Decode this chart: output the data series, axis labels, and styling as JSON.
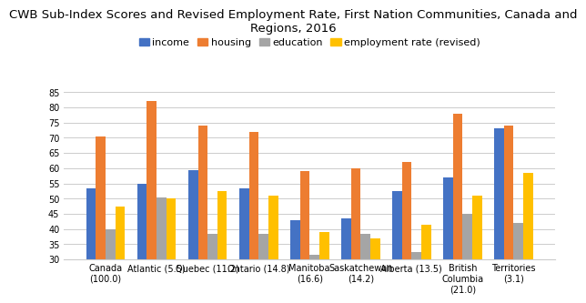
{
  "title": "CWB Sub-Index Scores and Revised Employment Rate, First Nation Communities, Canada and\nRegions, 2016",
  "categories": [
    "Canada\n(100.0)",
    "Atlantic (5.5)",
    "Quebec (11.2)",
    "Ontario (14.8)",
    "Manitoba\n(16.6)",
    "Saskatchewan\n(14.2)",
    "Alberta (13.5)",
    "British\nColumbia\n(21.0)",
    "Territories\n(3.1)"
  ],
  "series": {
    "income": [
      53.5,
      55.0,
      59.5,
      53.5,
      43.0,
      43.5,
      52.5,
      57.0,
      73.0
    ],
    "housing": [
      70.5,
      82.0,
      74.0,
      72.0,
      59.0,
      60.0,
      62.0,
      78.0,
      74.0
    ],
    "education": [
      40.0,
      50.5,
      38.5,
      38.5,
      31.5,
      38.5,
      32.5,
      45.0,
      42.0
    ],
    "employment_rate": [
      47.5,
      50.0,
      52.5,
      51.0,
      39.0,
      37.0,
      41.5,
      51.0,
      58.5
    ]
  },
  "colors": {
    "income": "#4472C4",
    "housing": "#ED7D31",
    "education": "#A5A5A5",
    "employment_rate": "#FFC000"
  },
  "legend_labels": [
    "income",
    "housing",
    "education",
    "employment rate (revised)"
  ],
  "ylim": [
    30,
    85
  ],
  "yticks": [
    30,
    35,
    40,
    45,
    50,
    55,
    60,
    65,
    70,
    75,
    80,
    85
  ],
  "bar_width": 0.19,
  "title_fontsize": 9.5,
  "legend_fontsize": 8,
  "tick_fontsize": 7,
  "background_color": "#FFFFFF"
}
